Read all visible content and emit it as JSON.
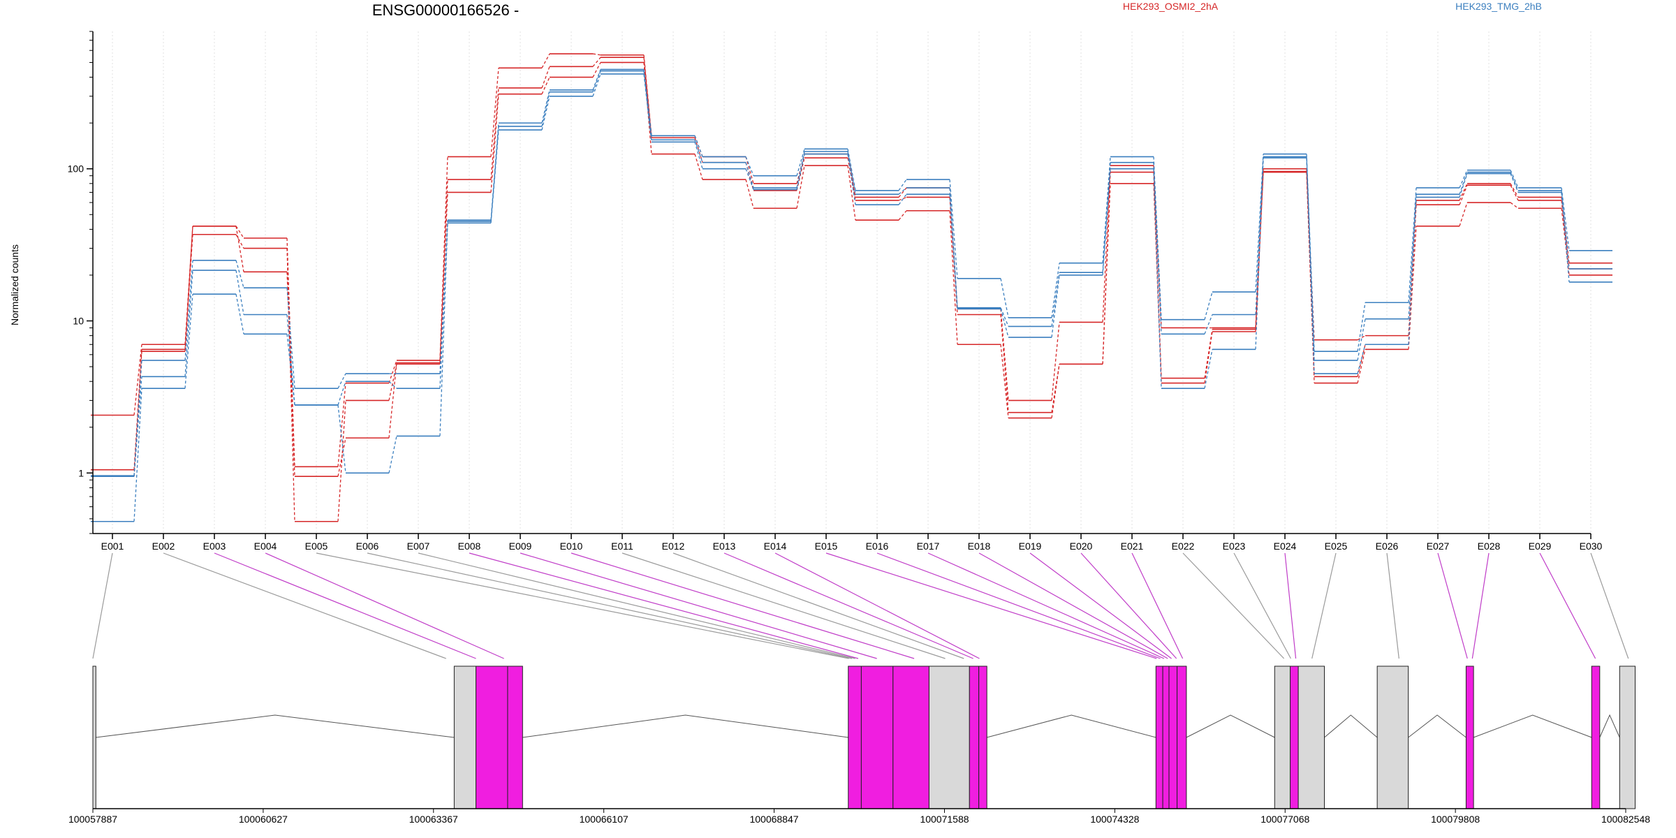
{
  "chart_data": {
    "type": "line",
    "title": "ENSG00000166526 -",
    "ylabel": "Normalized counts",
    "xlabel": "",
    "y_scale": "log",
    "ylim": [
      0.4,
      800
    ],
    "y_ticks": [
      {
        "value": 1,
        "label": "1"
      },
      {
        "value": 10,
        "label": "10"
      },
      {
        "value": 100,
        "label": "100"
      }
    ],
    "grid": "vertical dotted lines at each exon",
    "legend": [
      {
        "label": "HEK293_OSMI2_2hA",
        "color": "#d62728"
      },
      {
        "label": "HEK293_TMG_2hB",
        "color": "#3b7fbf"
      }
    ],
    "categories": [
      "E001",
      "E002",
      "E003",
      "E004",
      "E005",
      "E006",
      "E007",
      "E008",
      "E009",
      "E010",
      "E011",
      "E012",
      "E013",
      "E014",
      "E015",
      "E016",
      "E017",
      "E018",
      "E019",
      "E020",
      "E021",
      "E022",
      "E023",
      "E024",
      "E025",
      "E026",
      "E027",
      "E028",
      "E029",
      "E030"
    ],
    "series": [
      {
        "name": "HEK293_OSMI2_2hA",
        "color": "#d62728",
        "values": [
          2.4,
          7.0,
          42,
          35,
          1.1,
          3.9,
          5.5,
          120,
          460,
          570,
          560,
          165,
          120,
          80,
          125,
          65,
          75,
          12,
          3.0,
          9.8,
          105,
          9.0,
          9.0,
          100,
          7.5,
          8.0,
          62,
          80,
          65,
          24
        ]
      },
      {
        "name": "HEK293_OSMI2_2hA",
        "color": "#d62728",
        "values": [
          1.05,
          6.5,
          37,
          30,
          0.48,
          3.0,
          5.2,
          85,
          340,
          470,
          540,
          160,
          110,
          72,
          118,
          62,
          65,
          11,
          2.5,
          5.2,
          95,
          4.2,
          8.8,
          96,
          4.3,
          7.0,
          58,
          78,
          62,
          22
        ]
      },
      {
        "name": "HEK293_OSMI2_2hA",
        "color": "#d62728",
        "values": [
          0.95,
          6.3,
          42,
          21,
          0.95,
          1.7,
          5.3,
          70,
          310,
          400,
          500,
          125,
          85,
          55,
          105,
          46,
          53,
          7.0,
          2.3,
          5.2,
          80,
          3.9,
          8.5,
          95,
          3.9,
          6.5,
          42,
          60,
          55,
          20
        ]
      },
      {
        "name": "HEK293_TMG_2hB",
        "color": "#3b7fbf",
        "values": [
          0.96,
          5.5,
          25,
          16.5,
          3.6,
          4.5,
          4.5,
          46,
          200,
          330,
          450,
          165,
          120,
          90,
          135,
          72,
          85,
          19,
          10.5,
          24,
          120,
          10.2,
          15.5,
          125,
          6.3,
          13.2,
          75,
          98,
          75,
          29
        ]
      },
      {
        "name": "HEK293_TMG_2hB",
        "color": "#3b7fbf",
        "values": [
          0.95,
          4.3,
          21.5,
          11,
          2.8,
          4.0,
          3.6,
          45,
          190,
          320,
          440,
          155,
          110,
          75,
          130,
          68,
          75,
          12.2,
          9.2,
          20.8,
          110,
          8.2,
          11,
          120,
          5.5,
          10.3,
          68,
          95,
          72,
          22
        ]
      },
      {
        "name": "HEK293_TMG_2hB",
        "color": "#3b7fbf",
        "values": [
          0.48,
          3.6,
          15,
          8.2,
          2.8,
          1.0,
          1.75,
          44,
          180,
          300,
          420,
          150,
          100,
          73,
          125,
          58,
          68,
          12.0,
          7.8,
          20.0,
          100,
          3.6,
          6.5,
          118,
          4.5,
          7.0,
          65,
          93,
          70,
          18
        ]
      }
    ],
    "gene_model": {
      "x_ticks": [
        100057887,
        100060627,
        100063367,
        100066107,
        100068847,
        100071588,
        100074328,
        100077068,
        100079808,
        100082548
      ],
      "features": [
        {
          "start": 100057887,
          "end": 100057935,
          "type": "constitutive",
          "color": "#d9d9d9"
        },
        {
          "start": 100063700,
          "end": 100064050,
          "type": "constitutive",
          "color": "#d9d9d9"
        },
        {
          "start": 100064050,
          "end": 100064560,
          "type": "highlighted",
          "color": "#f01ee0"
        },
        {
          "start": 100064560,
          "end": 100064800,
          "type": "highlighted",
          "color": "#f01ee0"
        },
        {
          "start": 100070040,
          "end": 100070250,
          "type": "highlighted",
          "color": "#f01ee0"
        },
        {
          "start": 100070250,
          "end": 100070760,
          "type": "highlighted",
          "color": "#f01ee0"
        },
        {
          "start": 100070760,
          "end": 100071340,
          "type": "highlighted",
          "color": "#f01ee0"
        },
        {
          "start": 100071340,
          "end": 100071990,
          "type": "constitutive",
          "color": "#d9d9d9"
        },
        {
          "start": 100071990,
          "end": 100072140,
          "type": "highlighted",
          "color": "#f01ee0"
        },
        {
          "start": 100072140,
          "end": 100072270,
          "type": "highlighted",
          "color": "#f01ee0"
        },
        {
          "start": 100074990,
          "end": 100075100,
          "type": "highlighted",
          "color": "#f01ee0"
        },
        {
          "start": 100075100,
          "end": 100075200,
          "type": "highlighted",
          "color": "#f01ee0"
        },
        {
          "start": 100075200,
          "end": 100075330,
          "type": "highlighted",
          "color": "#f01ee0"
        },
        {
          "start": 100075330,
          "end": 100075480,
          "type": "highlighted",
          "color": "#f01ee0"
        },
        {
          "start": 100076900,
          "end": 100077150,
          "type": "constitutive",
          "color": "#d9d9d9"
        },
        {
          "start": 100077150,
          "end": 100077280,
          "type": "highlighted",
          "color": "#f01ee0"
        },
        {
          "start": 100077280,
          "end": 100077700,
          "type": "constitutive",
          "color": "#d9d9d9"
        },
        {
          "start": 100078550,
          "end": 100079050,
          "type": "constitutive",
          "color": "#d9d9d9"
        },
        {
          "start": 100079980,
          "end": 100080100,
          "type": "highlighted",
          "color": "#f01ee0"
        },
        {
          "start": 100082000,
          "end": 100082130,
          "type": "highlighted",
          "color": "#f01ee0"
        },
        {
          "start": 100082450,
          "end": 100082700,
          "type": "constitutive",
          "color": "#d9d9d9"
        }
      ],
      "exon_links": [
        {
          "exon": "E001",
          "target": 100057887,
          "highlighted": false
        },
        {
          "exon": "E002",
          "target": 100063570,
          "highlighted": false
        },
        {
          "exon": "E003",
          "target": 100064050,
          "highlighted": true
        },
        {
          "exon": "E004",
          "target": 100064500,
          "highlighted": true
        },
        {
          "exon": "E005",
          "target": 100070050,
          "highlighted": false
        },
        {
          "exon": "E006",
          "target": 100070100,
          "highlighted": false
        },
        {
          "exon": "E007",
          "target": 100070150,
          "highlighted": false
        },
        {
          "exon": "E008",
          "target": 100070200,
          "highlighted": true
        },
        {
          "exon": "E009",
          "target": 100070500,
          "highlighted": true
        },
        {
          "exon": "E010",
          "target": 100071100,
          "highlighted": true
        },
        {
          "exon": "E011",
          "target": 100071600,
          "highlighted": false
        },
        {
          "exon": "E012",
          "target": 100071900,
          "highlighted": false
        },
        {
          "exon": "E013",
          "target": 100072050,
          "highlighted": true
        },
        {
          "exon": "E014",
          "target": 100072150,
          "highlighted": true
        },
        {
          "exon": "E015",
          "target": 100075000,
          "highlighted": true
        },
        {
          "exon": "E016",
          "target": 100075060,
          "highlighted": true
        },
        {
          "exon": "E017",
          "target": 100075120,
          "highlighted": true
        },
        {
          "exon": "E018",
          "target": 100075180,
          "highlighted": true
        },
        {
          "exon": "E019",
          "target": 100075240,
          "highlighted": true
        },
        {
          "exon": "E020",
          "target": 100075320,
          "highlighted": true
        },
        {
          "exon": "E021",
          "target": 100075420,
          "highlighted": true
        },
        {
          "exon": "E022",
          "target": 100077050,
          "highlighted": false
        },
        {
          "exon": "E023",
          "target": 100077160,
          "highlighted": false
        },
        {
          "exon": "E024",
          "target": 100077240,
          "highlighted": true
        },
        {
          "exon": "E025",
          "target": 100077500,
          "highlighted": false
        },
        {
          "exon": "E026",
          "target": 100078900,
          "highlighted": false
        },
        {
          "exon": "E027",
          "target": 100080000,
          "highlighted": true
        },
        {
          "exon": "E028",
          "target": 100080080,
          "highlighted": true
        },
        {
          "exon": "E029",
          "target": 100082060,
          "highlighted": true
        },
        {
          "exon": "E030",
          "target": 100082590,
          "highlighted": false
        }
      ]
    }
  }
}
